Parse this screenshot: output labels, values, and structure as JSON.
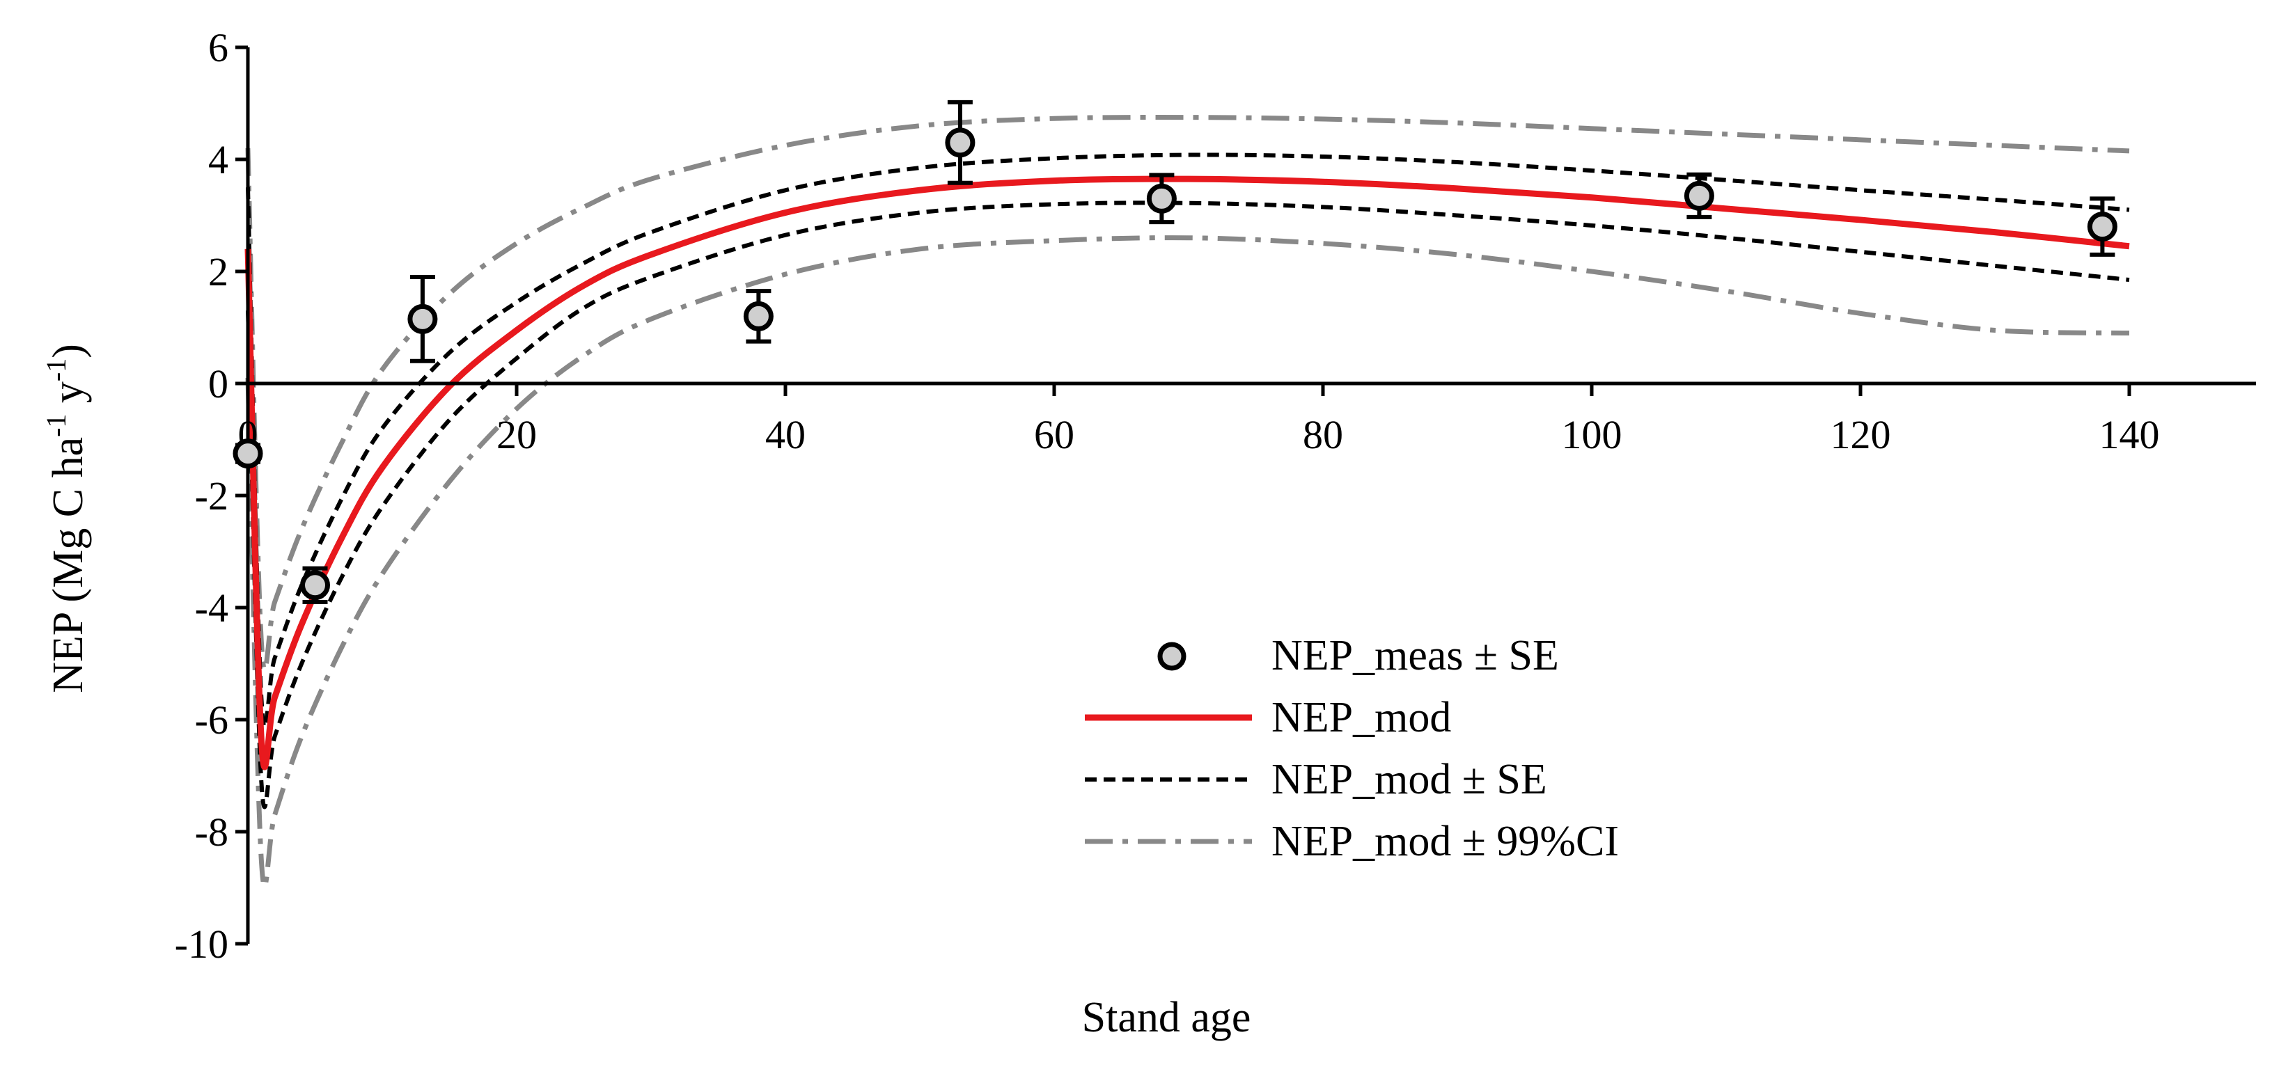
{
  "chart_data": {
    "type": "line",
    "title": "",
    "xlabel": "Stand age",
    "ylabel": {
      "main": "NEP (Mg C ha",
      "sup1": "-1",
      "mid": " y",
      "sup2": "-1",
      "end": ")"
    },
    "xlim": [
      0,
      150
    ],
    "ylim": [
      -10,
      6
    ],
    "x_ticks": [
      0,
      20,
      40,
      60,
      80,
      100,
      120,
      140
    ],
    "y_ticks": [
      -10,
      -8,
      -6,
      -4,
      -2,
      0,
      2,
      4,
      6
    ],
    "x_tick_labels": [
      "0",
      "20",
      "40",
      "60",
      "80",
      "100",
      "120",
      "140"
    ],
    "y_tick_labels": [
      "-10",
      "-8",
      "-6",
      "-4",
      "-2",
      "0",
      "2",
      "4",
      "6"
    ],
    "grid": false,
    "legend_position": "center-right",
    "legend": [
      {
        "key": "meas",
        "label": "NEP_meas ± SE"
      },
      {
        "key": "mod",
        "label": "NEP_mod"
      },
      {
        "key": "se",
        "label": "NEP_mod ± SE"
      },
      {
        "key": "ci",
        "label": "NEP_mod ± 99%CI"
      }
    ],
    "series": [
      {
        "name": "NEP_meas ± SE",
        "kind": "points",
        "x": [
          0,
          5,
          13,
          38,
          53,
          68,
          108,
          138
        ],
        "y": [
          -1.25,
          -3.6,
          1.15,
          1.2,
          4.3,
          3.3,
          3.35,
          2.8
        ],
        "se": [
          0.15,
          0.3,
          0.75,
          0.45,
          0.72,
          0.42,
          0.38,
          0.5
        ]
      },
      {
        "name": "NEP_mod",
        "kind": "line",
        "x": [
          0,
          1,
          2,
          4,
          7,
          10,
          15,
          20,
          25,
          30,
          40,
          50,
          60,
          70,
          80,
          90,
          100,
          110,
          120,
          130,
          140
        ],
        "y": [
          2.4,
          -6.35,
          -5.6,
          -4.3,
          -2.75,
          -1.5,
          -0.05,
          0.95,
          1.75,
          2.3,
          3.05,
          3.45,
          3.62,
          3.65,
          3.6,
          3.48,
          3.32,
          3.12,
          2.92,
          2.7,
          2.45
        ]
      },
      {
        "name": "NEP_mod + SE",
        "kind": "line",
        "x": [
          0,
          1,
          2,
          4,
          7,
          10,
          15,
          20,
          25,
          30,
          40,
          50,
          60,
          70,
          80,
          90,
          100,
          110,
          120,
          130,
          140
        ],
        "y": [
          3.5,
          -5.6,
          -4.9,
          -3.6,
          -2.05,
          -0.8,
          0.55,
          1.45,
          2.15,
          2.7,
          3.45,
          3.85,
          4.02,
          4.08,
          4.05,
          3.95,
          3.8,
          3.63,
          3.45,
          3.28,
          3.1
        ]
      },
      {
        "name": "NEP_mod - SE",
        "kind": "line",
        "x": [
          0,
          1,
          2,
          4,
          7,
          10,
          15,
          20,
          25,
          30,
          40,
          50,
          60,
          70,
          80,
          90,
          100,
          110,
          120,
          130,
          140
        ],
        "y": [
          1.3,
          -7.1,
          -6.3,
          -5.0,
          -3.45,
          -2.2,
          -0.65,
          0.45,
          1.35,
          1.9,
          2.65,
          3.05,
          3.2,
          3.22,
          3.15,
          3.0,
          2.82,
          2.6,
          2.35,
          2.1,
          1.85
        ]
      },
      {
        "name": "NEP_mod + 99%CI",
        "kind": "line",
        "x": [
          0,
          1,
          2,
          4,
          7,
          10,
          15,
          20,
          25,
          30,
          40,
          50,
          60,
          70,
          80,
          90,
          100,
          110,
          120,
          130,
          140
        ],
        "y": [
          4.2,
          -4.6,
          -3.9,
          -2.6,
          -1.05,
          0.25,
          1.6,
          2.5,
          3.15,
          3.65,
          4.25,
          4.6,
          4.73,
          4.75,
          4.72,
          4.65,
          4.55,
          4.45,
          4.35,
          4.25,
          4.15
        ]
      },
      {
        "name": "NEP_mod - 99%CI",
        "kind": "line",
        "x": [
          0,
          1,
          2,
          4,
          7,
          10,
          15,
          20,
          25,
          30,
          40,
          50,
          60,
          70,
          80,
          90,
          100,
          110,
          120,
          130,
          140
        ],
        "y": [
          0.1,
          -8.5,
          -7.7,
          -6.3,
          -4.7,
          -3.4,
          -1.75,
          -0.45,
          0.5,
          1.15,
          1.95,
          2.4,
          2.55,
          2.6,
          2.5,
          2.3,
          2.0,
          1.65,
          1.25,
          0.95,
          0.9
        ]
      }
    ]
  },
  "colors": {
    "mod_line": "#e8191e",
    "se_line": "#000000",
    "ci_line": "#888888",
    "marker_fill": "#cfcfcf",
    "marker_stroke": "#000000",
    "axis": "#000000"
  }
}
